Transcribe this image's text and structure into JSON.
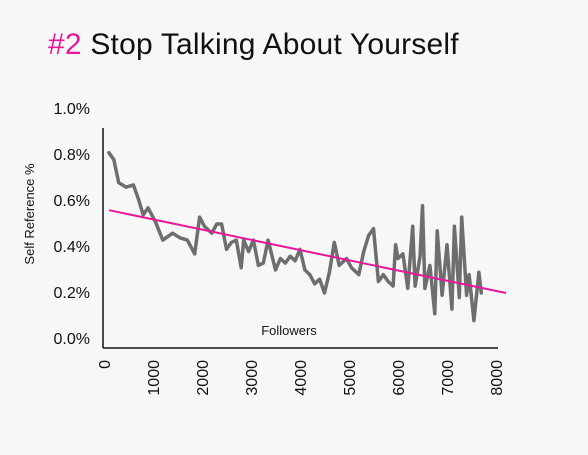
{
  "header": {
    "number": "#2",
    "text": "Stop Talking About Yourself"
  },
  "colors": {
    "accent": "#e6189b",
    "series": "#6e6e6e",
    "trend": "#e6189b",
    "axis": "#111111",
    "background": "#f7f7f7"
  },
  "chart_data": {
    "type": "line",
    "title": "#2 Stop Talking About Yourself",
    "xlabel": "Followers",
    "ylabel": "Self Reference %",
    "xlim": [
      0,
      8000
    ],
    "ylim": [
      0,
      1.0
    ],
    "x_ticks": [
      "0",
      "1000",
      "2000",
      "3000",
      "4000",
      "5000",
      "6000",
      "7000",
      "8000"
    ],
    "y_ticks": [
      "0.0%",
      "0.2%",
      "0.4%",
      "0.6%",
      "0.8%",
      "1.0%"
    ],
    "grid": false,
    "series": [
      {
        "x": [
          100,
          200,
          300,
          450,
          600,
          700,
          800,
          900,
          1050,
          1200,
          1400,
          1550,
          1700,
          1850,
          1950,
          2050,
          2200,
          2300,
          2400,
          2500,
          2600,
          2700,
          2800,
          2850,
          2950,
          3050,
          3150,
          3250,
          3350,
          3500,
          3600,
          3700,
          3800,
          3900,
          4000,
          4100,
          4200,
          4300,
          4400,
          4500,
          4600,
          4700,
          4800,
          4950,
          5050,
          5200,
          5300,
          5400,
          5500,
          5600,
          5700,
          5800,
          5900,
          5950,
          6000,
          6100,
          6200,
          6300,
          6350,
          6450,
          6500,
          6550,
          6650,
          6750,
          6800,
          6900,
          7000,
          7100,
          7150,
          7250,
          7300,
          7400,
          7450,
          7550,
          7650,
          7700
        ],
        "values": [
          0.81,
          0.78,
          0.68,
          0.66,
          0.67,
          0.61,
          0.54,
          0.57,
          0.51,
          0.43,
          0.46,
          0.44,
          0.43,
          0.37,
          0.53,
          0.49,
          0.46,
          0.5,
          0.5,
          0.39,
          0.42,
          0.43,
          0.31,
          0.43,
          0.38,
          0.43,
          0.32,
          0.33,
          0.43,
          0.3,
          0.35,
          0.33,
          0.36,
          0.34,
          0.39,
          0.3,
          0.28,
          0.24,
          0.26,
          0.2,
          0.29,
          0.42,
          0.32,
          0.35,
          0.31,
          0.28,
          0.38,
          0.45,
          0.48,
          0.25,
          0.28,
          0.25,
          0.23,
          0.41,
          0.35,
          0.37,
          0.22,
          0.49,
          0.23,
          0.36,
          0.58,
          0.22,
          0.32,
          0.11,
          0.47,
          0.19,
          0.41,
          0.13,
          0.49,
          0.18,
          0.53,
          0.19,
          0.28,
          0.08,
          0.29,
          0.2
        ]
      },
      {
        "x": [
          0,
          8000
        ],
        "values": [
          0.56,
          0.2
        ]
      }
    ]
  }
}
